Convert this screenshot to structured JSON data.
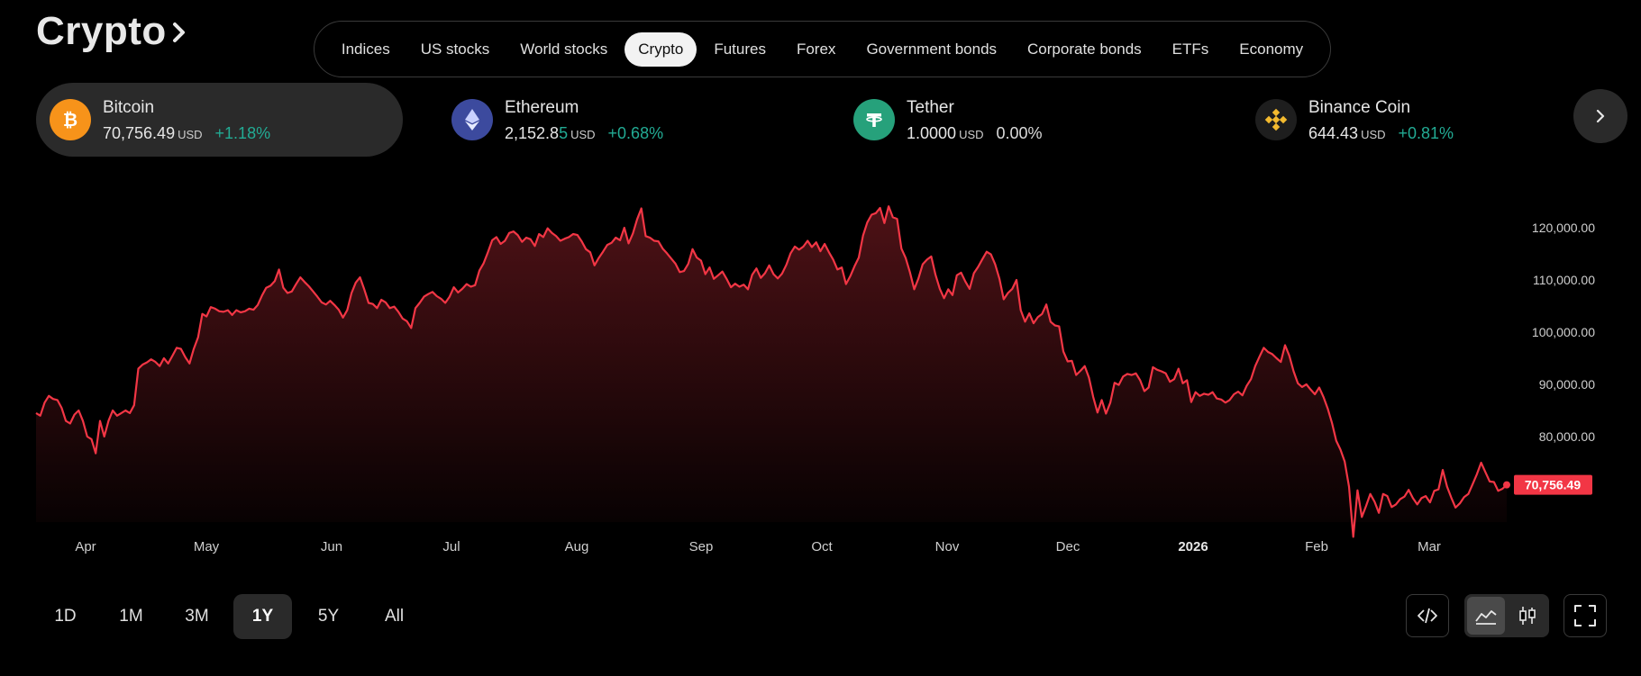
{
  "header": {
    "title": "Crypto",
    "title_arrow_icon": "chevron-right-icon"
  },
  "tabs": [
    {
      "label": "Indices",
      "active": false
    },
    {
      "label": "US stocks",
      "active": false
    },
    {
      "label": "World stocks",
      "active": false
    },
    {
      "label": "Crypto",
      "active": true
    },
    {
      "label": "Futures",
      "active": false
    },
    {
      "label": "Forex",
      "active": false
    },
    {
      "label": "Government bonds",
      "active": false
    },
    {
      "label": "Corporate bonds",
      "active": false
    },
    {
      "label": "ETFs",
      "active": false
    },
    {
      "label": "Economy",
      "active": false
    }
  ],
  "coins": [
    {
      "name": "Bitcoin",
      "price_main": "70,756.49",
      "price_tail": "",
      "unit": "USD",
      "change": "+1.18%",
      "trend": "up",
      "icon": "bitcoin-icon",
      "color": "#f7931a",
      "active": true
    },
    {
      "name": "Ethereum",
      "price_main": "2,152.8",
      "price_tail": "5",
      "unit": "USD",
      "change": "+0.68%",
      "trend": "up",
      "icon": "ethereum-icon",
      "color": "#3c4a9e",
      "active": false
    },
    {
      "name": "Tether",
      "price_main": "1.0000",
      "price_tail": "",
      "unit": "USD",
      "change": "0.00%",
      "trend": "flat",
      "icon": "tether-icon",
      "color": "#26a17b",
      "active": false
    },
    {
      "name": "Binance Coin",
      "price_main": "644.43",
      "price_tail": "",
      "unit": "USD",
      "change": "+0.81%",
      "trend": "up",
      "icon": "binance-icon",
      "color": "#1e1e1e",
      "active": false
    }
  ],
  "next_button_icon": "chevron-right-icon",
  "chart_data": {
    "type": "area",
    "series": [
      {
        "values": [
          84500,
          84000,
          86500,
          87800,
          87200,
          87000,
          85500,
          83000,
          82500,
          84200,
          85000,
          83000,
          80000,
          79500,
          76800,
          83000,
          80000,
          83000,
          85000,
          84000,
          84500,
          85000,
          84500,
          86000,
          93000,
          93800,
          94200,
          94800,
          94300,
          93500,
          95000,
          94000,
          95500,
          97000,
          96800,
          95200,
          94000,
          96800,
          99000,
          103500,
          103000,
          104800,
          104500,
          104000,
          103900,
          104200,
          103300,
          104200,
          103800,
          104000,
          104500,
          104300,
          105200,
          107000,
          108500,
          108900,
          109800,
          112000,
          108500,
          107500,
          107800,
          109200,
          110500,
          109600,
          108800,
          107800,
          106800,
          105700,
          105300,
          106000,
          105200,
          104300,
          102800,
          104200,
          107500,
          109500,
          110500,
          108200,
          105600,
          105400,
          104600,
          106200,
          105700,
          104600,
          104900,
          103900,
          102600,
          102100,
          100800,
          104600,
          105600,
          106800,
          107300,
          107700,
          106900,
          106400,
          105600,
          106800,
          108600,
          107600,
          108300,
          109200,
          108700,
          109000,
          111800,
          113200,
          115300,
          117600,
          118200,
          116900,
          117500,
          119000,
          119300,
          118600,
          117300,
          118100,
          117800,
          116500,
          118800,
          118200,
          119900,
          119000,
          118400,
          117500,
          117900,
          118200,
          118800,
          118600,
          117400,
          115900,
          115300,
          112800,
          114200,
          115400,
          116700,
          117100,
          118100,
          117600,
          120000,
          117000,
          118900,
          121600,
          123700,
          118400,
          118100,
          117500,
          117400,
          116000,
          115100,
          114100,
          113100,
          111500,
          111700,
          113100,
          115900,
          114300,
          113700,
          111100,
          112400,
          110200,
          110900,
          111600,
          110200,
          108600,
          109300,
          108700,
          109100,
          108200,
          111000,
          112200,
          110400,
          111300,
          112800,
          111100,
          110300,
          111200,
          112900,
          115100,
          116400,
          115800,
          116400,
          117500,
          116300,
          117200,
          115500,
          116900,
          115300,
          113900,
          112000,
          112400,
          109200,
          110700,
          112600,
          114300,
          118500,
          121000,
          122500,
          122800,
          123800,
          120900,
          124100,
          122000,
          121700,
          116000,
          114200,
          111500,
          108200,
          110300,
          113000,
          113900,
          114500,
          111000,
          108300,
          106500,
          108200,
          107100,
          110900,
          111400,
          109700,
          108300,
          111300,
          112500,
          114000,
          115400,
          114900,
          113000,
          110200,
          106300,
          107500,
          108300,
          110000,
          104200,
          102000,
          103600,
          101700,
          102900,
          103500,
          105300,
          102000,
          101300,
          101100,
          96300,
          94400,
          94500,
          91800,
          92600,
          93500,
          91300,
          87600,
          84600,
          87000,
          84400,
          86500,
          90300,
          89900,
          91500,
          92000,
          91800,
          92100,
          90800,
          88700,
          89400,
          93300,
          92800,
          92500,
          92100,
          90500,
          91000,
          93000,
          90200,
          90800,
          86600,
          88500,
          87800,
          88200,
          88000,
          88500,
          87300,
          87100,
          86500,
          87000,
          88100,
          88600,
          87900,
          89700,
          91000,
          93500,
          95300,
          97000,
          96200,
          95800,
          95000,
          94300,
          97500,
          95500,
          92500,
          90200,
          89500,
          90000,
          89000,
          88100,
          89400,
          87600,
          85400,
          82600,
          79200,
          77500,
          75200,
          70400,
          60800,
          69700,
          64600,
          66700,
          69000,
          67500,
          65400,
          69000,
          68600,
          66500,
          67000,
          68000,
          68500,
          69800,
          68200,
          67000,
          68200,
          68600,
          67400,
          69600,
          69900,
          73600,
          70400,
          68300,
          66400,
          67200,
          68400,
          69000,
          70900,
          72800,
          75000,
          73200,
          71400,
          71300,
          69600,
          70000,
          70756.49
        ]
      }
    ],
    "x_ticks": [
      "Apr",
      "May",
      "Jun",
      "Jul",
      "Aug",
      "Sep",
      "Oct",
      "Nov",
      "Dec",
      "2026",
      "Feb",
      "Mar"
    ],
    "x_tick_bold": "2026",
    "y_ticks": [
      "120,000.00",
      "110,000.00",
      "100,000.00",
      "90,000.00",
      "80,000.00"
    ],
    "last_value_label": "70,756.49",
    "line_color": "#f23645",
    "label_bg": "#f23645",
    "grid": false,
    "ylim": [
      64000,
      126000
    ]
  },
  "ranges": [
    {
      "label": "1D",
      "active": false
    },
    {
      "label": "1M",
      "active": false
    },
    {
      "label": "3M",
      "active": false
    },
    {
      "label": "1Y",
      "active": true
    },
    {
      "label": "5Y",
      "active": false
    },
    {
      "label": "All",
      "active": false
    }
  ],
  "tools": {
    "embed_icon": "code-icon",
    "area_icon": "area-chart-icon",
    "candle_icon": "candlestick-icon",
    "fullscreen_icon": "fullscreen-icon"
  }
}
